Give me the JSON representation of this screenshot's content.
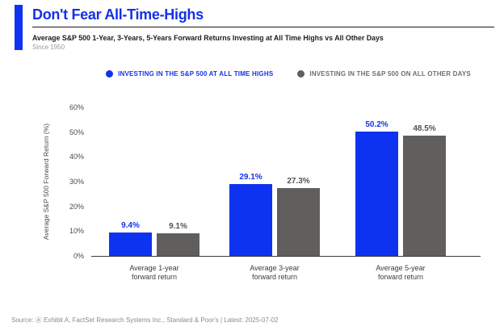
{
  "header": {
    "title": "Don't Fear All-Time-Highs",
    "subtitle": "Average S&P 500 1-Year, 3-Years, 5-Years Forward Returns Investing at All Time Highs vs All Other Days",
    "since": "Since 1950"
  },
  "legend": [
    {
      "label": "INVESTING IN THE S&P 500 AT ALL TIME HIGHS",
      "dot_color": "#0e33f0",
      "text_color": "#1233ec"
    },
    {
      "label": "INVESTING IN THE S&P 500 ON ALL OTHER DAYS",
      "dot_color": "#615e5e",
      "text_color": "#6e6e6e"
    }
  ],
  "chart_data": {
    "type": "bar",
    "title": "Don't Fear All-Time-Highs",
    "subtitle": "Average S&P 500 1-Year, 3-Years, 5-Years Forward Returns Investing at All Time Highs vs All Other Days",
    "categories": [
      "Average 1-year forward return",
      "Average 3-year forward return",
      "Average 5-year forward return"
    ],
    "category_lines": [
      [
        "Average 1-year",
        "forward return"
      ],
      [
        "Average 3-year",
        "forward return"
      ],
      [
        "Average 5-year",
        "forward return"
      ]
    ],
    "series": [
      {
        "name": "Investing in the S&P 500 at All Time Highs",
        "color": "#0e33f0",
        "label_color": "#1233ec",
        "values": [
          9.4,
          29.1,
          50.2
        ],
        "labels": [
          "9.4%",
          "29.1%",
          "50.2%"
        ]
      },
      {
        "name": "Investing in the S&P 500 on All Other Days",
        "color": "#615e5e",
        "label_color": "#545454",
        "values": [
          9.1,
          27.3,
          48.5
        ],
        "labels": [
          "9.1%",
          "27.3%",
          "48.5%"
        ]
      }
    ],
    "xlabel": "",
    "ylabel": "Average S&P 500 Forward Return (%)",
    "ylim": [
      0,
      60
    ],
    "yticks": [
      "0%",
      "10%",
      "20%",
      "30%",
      "40%",
      "50%",
      "60%"
    ],
    "grid": false,
    "legend_position": "top"
  },
  "footer": {
    "source": "Source: Ⓐ Exhibit A, FactSet Research Systems Inc., Standard & Poor's | Latest: 2025-07-02"
  }
}
